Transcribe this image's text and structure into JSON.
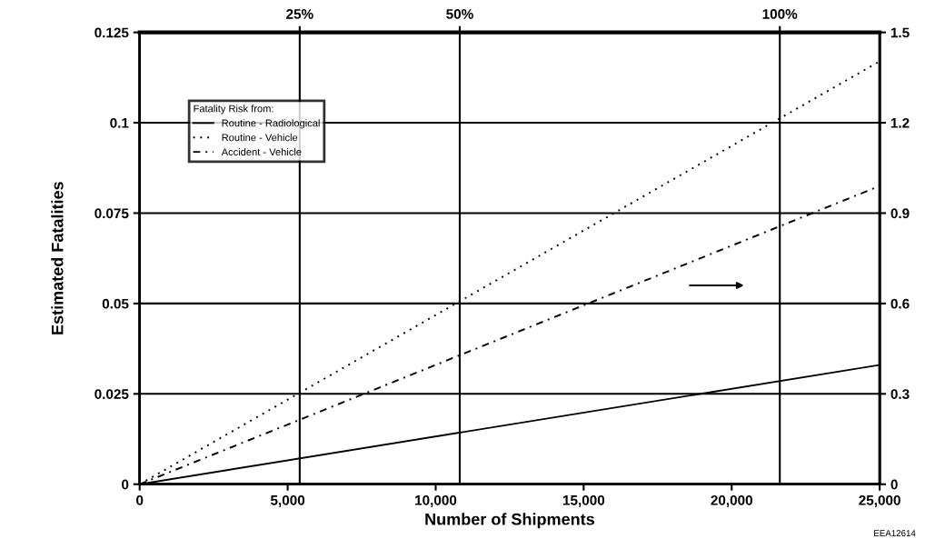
{
  "chart_data": {
    "type": "line",
    "xlabel": "Number of Shipments",
    "ylabel": "Estimated Fatalities",
    "legend_title": "Fatality Risk from:",
    "legend": "top left",
    "grid": true,
    "marker": "none",
    "xlim": [
      0,
      25000
    ],
    "xticks": [
      {
        "value": 0,
        "label": "0"
      },
      {
        "value": 5000,
        "label": "5,000"
      },
      {
        "value": 10000,
        "label": "10,000"
      },
      {
        "value": 15000,
        "label": "15,000"
      },
      {
        "value": 20000,
        "label": "20,000"
      },
      {
        "value": 25000,
        "label": "25,000"
      }
    ],
    "ylim": [
      0,
      0.125
    ],
    "yticks": [
      0,
      0.025,
      0.05,
      0.075,
      0.1,
      0.125
    ],
    "y2lim": [
      0,
      1.5
    ],
    "y2ticks": [
      0,
      0.3,
      0.6,
      0.9,
      1.2,
      1.5
    ],
    "x2lim": [
      0,
      115.6
    ],
    "x2ticks": [
      {
        "value": 25,
        "label": "25%"
      },
      {
        "value": 50,
        "label": "50%"
      },
      {
        "value": 100,
        "label": "100%"
      }
    ],
    "annotations": [
      "EEA12614"
    ],
    "x": [
      0,
      25000
    ],
    "series": [
      {
        "name": "Routine - Radiological",
        "color": "#000000",
        "line_style": "solid",
        "values": [
          0,
          0.033
        ]
      },
      {
        "name": "Routine - Vehicle",
        "color": "#000000",
        "line_style": "dotted",
        "values": [
          0,
          0.117
        ]
      },
      {
        "name": "Accident - Vehicle",
        "color": "#000000",
        "line_style": "dashed",
        "axis": "y2",
        "values": [
          0,
          0.99
        ]
      }
    ]
  }
}
